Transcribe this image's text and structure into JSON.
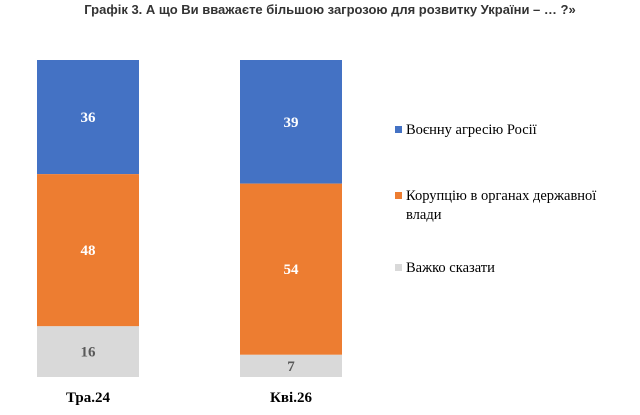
{
  "chart_data": {
    "type": "bar",
    "stacked": true,
    "title": "Графік 3. А що Ви вважаєте більшою загрозою для розвитку України – … ?»",
    "categories": [
      "Тра.24",
      "Кві.26"
    ],
    "series": [
      {
        "name": "Воєнну агресію Росії",
        "values": [
          36,
          39
        ],
        "color": "#4472C4",
        "label_color": "#ffffff"
      },
      {
        "name": "Корупцію в органах державної влади",
        "values": [
          48,
          54
        ],
        "color": "#ED7D31",
        "label_color": "#ffffff"
      },
      {
        "name": "Важко сказати",
        "values": [
          16,
          7
        ],
        "color": "#D9D9D9",
        "label_color": "#595959"
      }
    ],
    "ylim": [
      0,
      100
    ],
    "grid": false,
    "legend_position": "right",
    "xlabel": "",
    "ylabel": ""
  }
}
